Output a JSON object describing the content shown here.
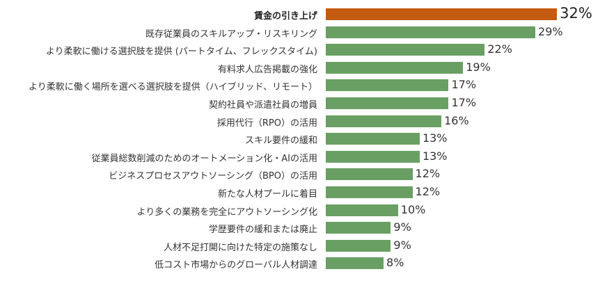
{
  "chart_data": {
    "type": "bar",
    "orientation": "horizontal",
    "categories": [
      "賃金の引き上げ",
      "既存従業員のスキルアップ・リスキリング",
      "より柔軟に働ける選択肢を提供 (パートタイム、フレックスタイム)",
      "有料求人広告掲載の強化",
      "より柔軟に働く場所を選べる選択肢を提供（ハイブリッド、リモート）",
      "契約社員や派遣社員の増員",
      "採用代行（RPO）の活用",
      "スキル要件の緩和",
      "従業員総数削減のためのオートメーション化・AIの活用",
      "ビジネスプロセスアウトソーシング（BPO）の活用",
      "新たな人材プールに着目",
      "より多くの業務を完全にアウトソーシング化",
      "学歴要件の緩和または廃止",
      "人材不足打開に向けた特定の施策なし",
      "低コスト市場からのグローバル人材調達"
    ],
    "values": [
      32,
      29,
      22,
      19,
      17,
      17,
      16,
      13,
      13,
      12,
      12,
      10,
      9,
      9,
      8
    ],
    "value_labels": [
      "32%",
      "29%",
      "22%",
      "19%",
      "17%",
      "17%",
      "16%",
      "13%",
      "13%",
      "12%",
      "12%",
      "10%",
      "9%",
      "9%",
      "8%"
    ],
    "unit": "%",
    "highlight_index": 0,
    "colors": {
      "highlight": "#c55a11",
      "default": "#6a9f64"
    },
    "grid": false,
    "legend": "none"
  }
}
